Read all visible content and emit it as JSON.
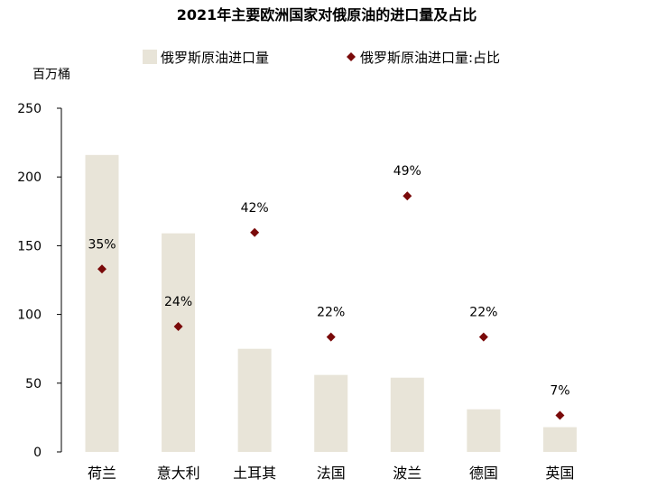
{
  "chart_data": {
    "type": "bar",
    "title": "2021年主要欧洲国家对俄原油的进口量及占比",
    "ylabel": "百万桶",
    "ylim": [
      0,
      250
    ],
    "yticks": [
      0,
      50,
      100,
      150,
      200,
      250
    ],
    "categories": [
      "荷兰",
      "意大利",
      "土耳其",
      "法国",
      "波兰",
      "德国",
      "英国"
    ],
    "series": [
      {
        "name": "俄罗斯原油进口量",
        "type": "bar",
        "color": "#e8e4d8",
        "values": [
          216,
          159,
          75,
          56,
          54,
          31,
          18
        ]
      },
      {
        "name": "俄罗斯原油进口量:占比",
        "type": "scatter",
        "marker": "diamond",
        "color": "#7a0a0a",
        "values": [
          35,
          24,
          42,
          22,
          49,
          22,
          7
        ],
        "labels": [
          "35%",
          "24%",
          "42%",
          "22%",
          "49%",
          "22%",
          "7%"
        ]
      }
    ],
    "legend_position": "top",
    "grid": false
  }
}
